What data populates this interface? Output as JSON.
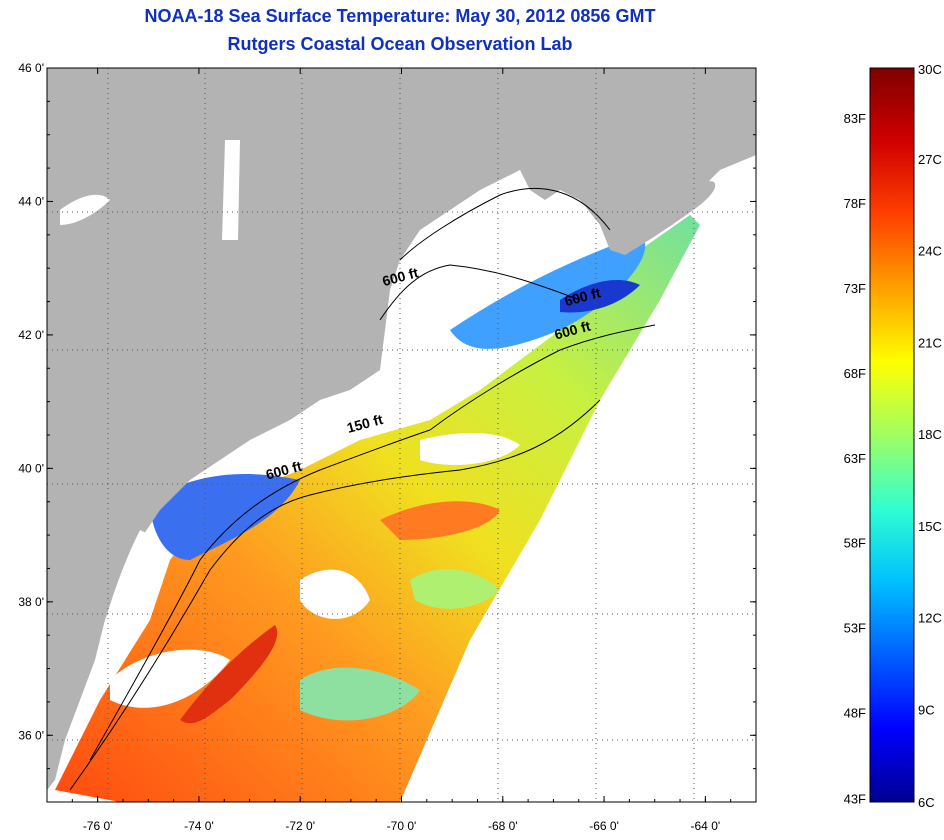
{
  "header": {
    "title": "NOAA-18 Sea Surface Temperature:  May 30, 2012 0856 GMT",
    "subtitle": "Rutgers Coastal Ocean Observation Lab"
  },
  "map": {
    "lat_range": [
      35,
      46
    ],
    "lon_range": [
      -77,
      -63
    ],
    "lat_ticks": [
      {
        "value": 46,
        "label": "46 0'"
      },
      {
        "value": 44,
        "label": "44 0'"
      },
      {
        "value": 42,
        "label": "42 0'"
      },
      {
        "value": 40,
        "label": "40 0'"
      },
      {
        "value": 38,
        "label": "38 0'"
      },
      {
        "value": 36,
        "label": "36 0'"
      }
    ],
    "lon_ticks": [
      {
        "value": -76,
        "label": "-76 0'"
      },
      {
        "value": -74,
        "label": "-74 0'"
      },
      {
        "value": -72,
        "label": "-72 0'"
      },
      {
        "value": -70,
        "label": "-70 0'"
      },
      {
        "value": -68,
        "label": "-68 0'"
      },
      {
        "value": -66,
        "label": "-66 0'"
      },
      {
        "value": -64,
        "label": "-64 0'"
      }
    ],
    "grid": "dotted",
    "isobath_labels": [
      {
        "text": "600 ft",
        "lon": -70.0,
        "lat": 42.8
      },
      {
        "text": "600 ft",
        "lon": -66.4,
        "lat": 42.5
      },
      {
        "text": "600 ft",
        "lon": -66.6,
        "lat": 42.0
      },
      {
        "text": "150 ft",
        "lon": -70.7,
        "lat": 40.6
      },
      {
        "text": "600 ft",
        "lon": -72.3,
        "lat": 39.9
      }
    ],
    "colors": {
      "land": "#b3b3b3",
      "no_data": "#ffffff",
      "contour": "#000000",
      "grid": "#555555"
    }
  },
  "colorbar": {
    "min_c": 6,
    "max_c": 30,
    "celsius_ticks": [
      {
        "value": 30,
        "label": "30C"
      },
      {
        "value": 27,
        "label": "27C"
      },
      {
        "value": 24,
        "label": "24C"
      },
      {
        "value": 21,
        "label": "21C"
      },
      {
        "value": 18,
        "label": "18C"
      },
      {
        "value": 15,
        "label": "15C"
      },
      {
        "value": 12,
        "label": "12C"
      },
      {
        "value": 9,
        "label": "9C"
      },
      {
        "value": 6,
        "label": "6C"
      }
    ],
    "fahrenheit_ticks": [
      {
        "value": 43,
        "label": "43F"
      },
      {
        "value": 48,
        "label": "48F"
      },
      {
        "value": 53,
        "label": "53F"
      },
      {
        "value": 58,
        "label": "58F"
      },
      {
        "value": 63,
        "label": "63F"
      },
      {
        "value": 68,
        "label": "68F"
      },
      {
        "value": 73,
        "label": "73F"
      },
      {
        "value": 78,
        "label": "78F"
      },
      {
        "value": 83,
        "label": "83F"
      }
    ],
    "gradient_colors": [
      "#00008f",
      "#0000ff",
      "#0060ff",
      "#00c0ff",
      "#30ffd0",
      "#a0ff60",
      "#ffff00",
      "#ffa000",
      "#ff4000",
      "#d00000",
      "#800000"
    ]
  }
}
